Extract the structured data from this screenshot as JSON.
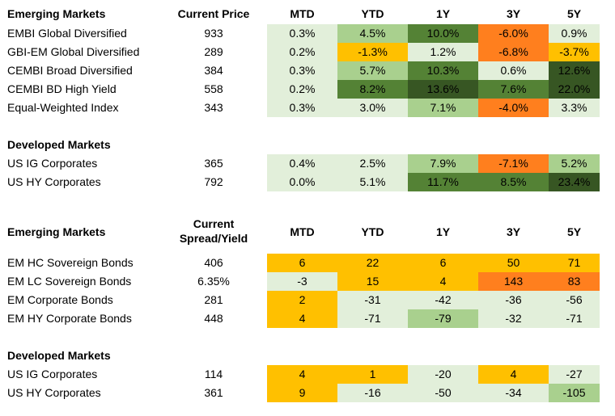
{
  "colors": {
    "light": "#e2efda",
    "mid": "#a9d08e",
    "dark": "#548235",
    "darkest": "#375623",
    "orange": "#ff7f1e",
    "gold": "#ffc000"
  },
  "columns": [
    "MTD",
    "YTD",
    "1Y",
    "3Y",
    "5Y"
  ],
  "returns": {
    "price_header": "Current Price",
    "sections": [
      {
        "title": "Emerging Markets",
        "rows": [
          {
            "name": "EMBI Global Diversified",
            "price": "933",
            "cells": [
              {
                "v": "0.3%",
                "c": "light"
              },
              {
                "v": "4.5%",
                "c": "mid"
              },
              {
                "v": "10.0%",
                "c": "dark"
              },
              {
                "v": "-6.0%",
                "c": "orange"
              },
              {
                "v": "0.9%",
                "c": "light"
              }
            ]
          },
          {
            "name": "GBI-EM Global Diversified",
            "price": "289",
            "cells": [
              {
                "v": "0.2%",
                "c": "light"
              },
              {
                "v": "-1.3%",
                "c": "gold"
              },
              {
                "v": "1.2%",
                "c": "light"
              },
              {
                "v": "-6.8%",
                "c": "orange"
              },
              {
                "v": "-3.7%",
                "c": "gold"
              }
            ]
          },
          {
            "name": "CEMBI Broad Diversified",
            "price": "384",
            "cells": [
              {
                "v": "0.3%",
                "c": "light"
              },
              {
                "v": "5.7%",
                "c": "mid"
              },
              {
                "v": "10.3%",
                "c": "dark"
              },
              {
                "v": "0.6%",
                "c": "light"
              },
              {
                "v": "12.6%",
                "c": "darkest"
              }
            ]
          },
          {
            "name": "CEMBI BD High Yield",
            "price": "558",
            "cells": [
              {
                "v": "0.2%",
                "c": "light"
              },
              {
                "v": "8.2%",
                "c": "dark"
              },
              {
                "v": "13.6%",
                "c": "darkest"
              },
              {
                "v": "7.6%",
                "c": "dark"
              },
              {
                "v": "22.0%",
                "c": "darkest"
              }
            ]
          },
          {
            "name": "Equal-Weighted Index",
            "price": "343",
            "cells": [
              {
                "v": "0.3%",
                "c": "light"
              },
              {
                "v": "3.0%",
                "c": "light"
              },
              {
                "v": "7.1%",
                "c": "mid"
              },
              {
                "v": "-4.0%",
                "c": "orange"
              },
              {
                "v": "3.3%",
                "c": "light"
              }
            ]
          }
        ]
      },
      {
        "title": "Developed Markets",
        "rows": [
          {
            "name": "US IG Corporates",
            "price": "365",
            "cells": [
              {
                "v": "0.4%",
                "c": "light"
              },
              {
                "v": "2.5%",
                "c": "light"
              },
              {
                "v": "7.9%",
                "c": "mid"
              },
              {
                "v": "-7.1%",
                "c": "orange"
              },
              {
                "v": "5.2%",
                "c": "mid"
              }
            ]
          },
          {
            "name": "US HY Corporates",
            "price": "792",
            "cells": [
              {
                "v": "0.0%",
                "c": "light"
              },
              {
                "v": "5.1%",
                "c": "light"
              },
              {
                "v": "11.7%",
                "c": "dark"
              },
              {
                "v": "8.5%",
                "c": "dark"
              },
              {
                "v": "23.4%",
                "c": "darkest"
              }
            ]
          }
        ]
      }
    ]
  },
  "spreads": {
    "spread_header_line1": "Current",
    "spread_header_line2": "Spread/Yield",
    "sections": [
      {
        "title": "Emerging Markets",
        "rows": [
          {
            "name": "EM HC Sovereign Bonds",
            "price": "406",
            "cells": [
              {
                "v": "6",
                "c": "gold"
              },
              {
                "v": "22",
                "c": "gold"
              },
              {
                "v": "6",
                "c": "gold"
              },
              {
                "v": "50",
                "c": "gold"
              },
              {
                "v": "71",
                "c": "gold"
              }
            ]
          },
          {
            "name": "EM LC Sovereign Bonds",
            "price": "6.35%",
            "cells": [
              {
                "v": "-3",
                "c": "light"
              },
              {
                "v": "15",
                "c": "gold"
              },
              {
                "v": "4",
                "c": "gold"
              },
              {
                "v": "143",
                "c": "orange"
              },
              {
                "v": "83",
                "c": "orange"
              }
            ]
          },
          {
            "name": "EM Corporate Bonds",
            "price": "281",
            "cells": [
              {
                "v": "2",
                "c": "gold"
              },
              {
                "v": "-31",
                "c": "light"
              },
              {
                "v": "-42",
                "c": "light"
              },
              {
                "v": "-36",
                "c": "light"
              },
              {
                "v": "-56",
                "c": "light"
              }
            ]
          },
          {
            "name": "EM HY Corporate Bonds",
            "price": "448",
            "cells": [
              {
                "v": "4",
                "c": "gold"
              },
              {
                "v": "-71",
                "c": "light"
              },
              {
                "v": "-79",
                "c": "mid"
              },
              {
                "v": "-32",
                "c": "light"
              },
              {
                "v": "-71",
                "c": "light"
              }
            ]
          }
        ]
      },
      {
        "title": "Developed Markets",
        "rows": [
          {
            "name": "US IG Corporates",
            "price": "114",
            "cells": [
              {
                "v": "4",
                "c": "gold"
              },
              {
                "v": "1",
                "c": "gold"
              },
              {
                "v": "-20",
                "c": "light"
              },
              {
                "v": "4",
                "c": "gold"
              },
              {
                "v": "-27",
                "c": "light"
              }
            ]
          },
          {
            "name": "US HY Corporates",
            "price": "361",
            "cells": [
              {
                "v": "9",
                "c": "gold"
              },
              {
                "v": "-16",
                "c": "light"
              },
              {
                "v": "-50",
                "c": "light"
              },
              {
                "v": "-34",
                "c": "light"
              },
              {
                "v": "-105",
                "c": "mid"
              }
            ]
          }
        ]
      }
    ]
  }
}
